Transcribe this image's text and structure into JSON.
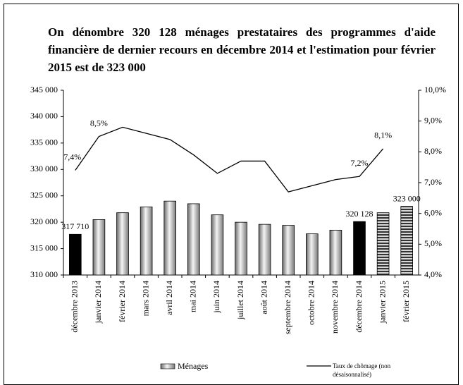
{
  "chart_data": {
    "type": "bar",
    "title": "On dénombre 320 128 ménages prestataires des programmes d'aide financière de dernier recours en décembre 2014 et l'estimation pour février 2015 est de 323 000",
    "categories": [
      "décembre 2013",
      "janvier 2014",
      "février 2014",
      "mars 2014",
      "avril 2014",
      "mai 2014",
      "juin 2014",
      "juillet 2014",
      "août 2014",
      "septembre 2014",
      "octobre 2014",
      "novembre 2014",
      "décembre 2014",
      "janvier 2015",
      "février 2015"
    ],
    "series": [
      {
        "name": "Ménages",
        "type": "bar",
        "color": "#b0b0b0",
        "values": [
          317710,
          320500,
          321800,
          322900,
          324000,
          323500,
          321400,
          320000,
          319600,
          319400,
          317800,
          318500,
          320128,
          321800,
          323000
        ],
        "value_labels": [
          "317 710",
          null,
          null,
          null,
          null,
          null,
          null,
          null,
          null,
          null,
          null,
          null,
          "320 128",
          null,
          "323 000"
        ],
        "colors": [
          "#000000",
          "#b0b0b0",
          "#b0b0b0",
          "#b0b0b0",
          "#b0b0b0",
          "#b0b0b0",
          "#b0b0b0",
          "#b0b0b0",
          "#b0b0b0",
          "#b0b0b0",
          "#b0b0b0",
          "#b0b0b0",
          "#000000",
          "#b0b0b0",
          "#b0b0b0"
        ],
        "patterns": [
          "solid",
          "gradient",
          "gradient",
          "gradient",
          "gradient",
          "gradient",
          "gradient",
          "gradient",
          "gradient",
          "gradient",
          "gradient",
          "gradient",
          "solid",
          "stripes",
          "stripes"
        ]
      },
      {
        "name": "Taux de chômage (non désaisonnalisé)",
        "type": "line",
        "axis": "y2",
        "color": "#000000",
        "values": [
          7.4,
          8.5,
          8.8,
          8.6,
          8.4,
          7.9,
          7.3,
          7.7,
          7.7,
          6.7,
          6.9,
          7.1,
          7.2,
          8.1,
          null
        ],
        "value_labels": [
          "7,4%",
          "8,5%",
          null,
          null,
          null,
          null,
          null,
          null,
          null,
          null,
          null,
          null,
          "7,2%",
          "8,1%",
          null
        ]
      }
    ],
    "ylim": [
      310000,
      345000
    ],
    "yticks": [
      {
        "value": 310000,
        "label": "310 000"
      },
      {
        "value": 315000,
        "label": "315 000"
      },
      {
        "value": 320000,
        "label": "320 000"
      },
      {
        "value": 325000,
        "label": "325 000"
      },
      {
        "value": 330000,
        "label": "330 000"
      },
      {
        "value": 335000,
        "label": "335 000"
      },
      {
        "value": 340000,
        "label": "340 000"
      },
      {
        "value": 345000,
        "label": "345 000"
      }
    ],
    "y2lim": [
      4,
      10
    ],
    "y2ticks": [
      {
        "value": 4,
        "label": "4,0%"
      },
      {
        "value": 5,
        "label": "5,0%"
      },
      {
        "value": 6,
        "label": "6,0%"
      },
      {
        "value": 7,
        "label": "7,0%"
      },
      {
        "value": 8,
        "label": "8,0%"
      },
      {
        "value": 9,
        "label": "9,0%"
      },
      {
        "value": 10,
        "label": "10,0%"
      }
    ],
    "grid": false,
    "legend": "bottom"
  }
}
